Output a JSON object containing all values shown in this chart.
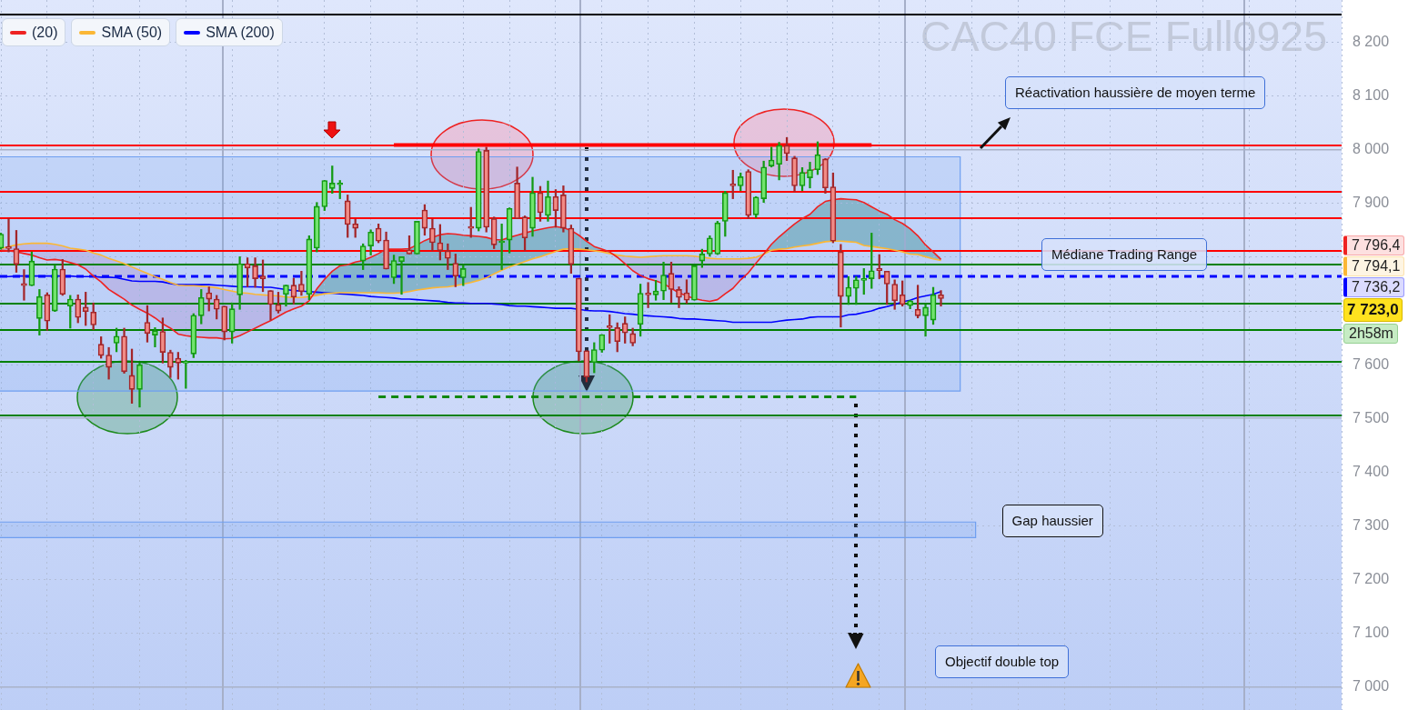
{
  "chart_data": {
    "type": "candlestick",
    "title": "CAC40 FCE Full0925",
    "categories": [
      null,
      null,
      null,
      null,
      null,
      null,
      null,
      null,
      null,
      null,
      null,
      null,
      null,
      null,
      null,
      null,
      null,
      null,
      null,
      null,
      null,
      null,
      null,
      null,
      null,
      null,
      null,
      null,
      null,
      null,
      null,
      null,
      null,
      null,
      null,
      null,
      null,
      null,
      null,
      null,
      null,
      null,
      null,
      null,
      null,
      null,
      null,
      null,
      null,
      null,
      null,
      null,
      null,
      null,
      null,
      null,
      null,
      null,
      null,
      null,
      null,
      null,
      null,
      null,
      null,
      null,
      null,
      null,
      null,
      null,
      null,
      null,
      null,
      null,
      null,
      null,
      null,
      null,
      null,
      null,
      null,
      null,
      null,
      null,
      null,
      null,
      null,
      null,
      null,
      null,
      null,
      null,
      null,
      null,
      null,
      null,
      null,
      null,
      null,
      null,
      null,
      null,
      null,
      null,
      null,
      null,
      null,
      null,
      null,
      null,
      null,
      null,
      null,
      null,
      null,
      null,
      null,
      null,
      null,
      null,
      null,
      null,
      null
    ],
    "ohlc": [
      [
        7817,
        7845,
        7815,
        7843
      ],
      [
        7820,
        7872,
        7810,
        7816
      ],
      [
        7816,
        7850,
        7772,
        7787
      ],
      [
        7751,
        7777,
        7720,
        7747
      ],
      [
        7747,
        7810,
        7747,
        7793
      ],
      [
        7686,
        7740,
        7655,
        7727
      ],
      [
        7730,
        7734,
        7664,
        7681
      ],
      [
        7700,
        7785,
        7699,
        7778
      ],
      [
        7778,
        7796,
        7729,
        7731
      ],
      [
        7709,
        7729,
        7668,
        7722
      ],
      [
        7722,
        7730,
        7678,
        7688
      ],
      [
        7707,
        7735,
        7673,
        7699
      ],
      [
        7698,
        7715,
        7665,
        7674
      ],
      [
        7638,
        7652,
        7612,
        7617
      ],
      [
        7618,
        7632,
        7573,
        7595
      ],
      [
        7640,
        7668,
        7624,
        7653
      ],
      [
        7653,
        7668,
        7584,
        7587
      ],
      [
        7580,
        7629,
        7528,
        7554
      ],
      [
        7554,
        7603,
        7521,
        7600
      ],
      [
        7679,
        7710,
        7642,
        7658
      ],
      [
        7655,
        7669,
        7633,
        7663
      ],
      [
        7662,
        7687,
        7603,
        7623
      ],
      [
        7623,
        7627,
        7576,
        7595
      ],
      [
        7612,
        7623,
        7573,
        7603
      ],
      [
        7603,
        7608,
        7556,
        7606
      ],
      [
        7620,
        7695,
        7613,
        7692
      ],
      [
        7691,
        7740,
        7676,
        7725
      ],
      [
        7734,
        7745,
        7700,
        7722
      ],
      [
        7722,
        7729,
        7685,
        7703
      ],
      [
        7709,
        7709,
        7646,
        7661
      ],
      [
        7661,
        7715,
        7640,
        7704
      ],
      [
        7730,
        7801,
        7703,
        7788
      ],
      [
        7788,
        7799,
        7745,
        7780
      ],
      [
        7784,
        7799,
        7744,
        7760
      ],
      [
        7765,
        7795,
        7736,
        7760
      ],
      [
        7738,
        7738,
        7683,
        7712
      ],
      [
        7712,
        7735,
        7696,
        7700
      ],
      [
        7731,
        7748,
        7709,
        7748
      ],
      [
        7748,
        7761,
        7713,
        7726
      ],
      [
        7750,
        7774,
        7729,
        7736
      ],
      [
        7731,
        7840,
        7721,
        7834
      ],
      [
        7817,
        7902,
        7810,
        7895
      ],
      [
        7894,
        7943,
        7887,
        7943
      ],
      [
        7928,
        7970,
        7919,
        7938
      ],
      [
        7935,
        7943,
        7909,
        7936
      ],
      [
        7905,
        7916,
        7837,
        7861
      ],
      [
        7862,
        7871,
        7837,
        7854
      ],
      [
        7793,
        7825,
        7777,
        7821
      ],
      [
        7821,
        7851,
        7804,
        7847
      ],
      [
        7854,
        7862,
        7827,
        7830
      ],
      [
        7832,
        7847,
        7778,
        7778
      ],
      [
        7762,
        7804,
        7751,
        7794
      ],
      [
        7792,
        7801,
        7731,
        7801
      ],
      [
        7814,
        7840,
        7806,
        7806
      ],
      [
        7806,
        7867,
        7806,
        7867
      ],
      [
        7888,
        7898,
        7841,
        7854
      ],
      [
        7854,
        7871,
        7812,
        7827
      ],
      [
        7827,
        7861,
        7795,
        7812
      ],
      [
        7812,
        7825,
        7777,
        7798
      ],
      [
        7789,
        7806,
        7745,
        7765
      ],
      [
        7762,
        7785,
        7747,
        7779
      ],
      [
        7857,
        7893,
        7837,
        7854
      ],
      [
        7854,
        8002,
        7849,
        7997
      ],
      [
        7999,
        8005,
        7847,
        7856
      ],
      [
        7872,
        7875,
        7816,
        7823
      ],
      [
        7827,
        7862,
        7777,
        7830
      ],
      [
        7832,
        7892,
        7808,
        7891
      ],
      [
        7938,
        7968,
        7872,
        7872
      ],
      [
        7875,
        7877,
        7812,
        7836
      ],
      [
        7854,
        7949,
        7839,
        7920
      ],
      [
        7920,
        7932,
        7867,
        7883
      ],
      [
        7878,
        7942,
        7867,
        7913
      ],
      [
        7913,
        7926,
        7856,
        7887
      ],
      [
        7916,
        7933,
        7847,
        7854
      ],
      [
        7854,
        7860,
        7770,
        7787
      ],
      [
        7761,
        7761,
        7607,
        7624
      ],
      [
        7626,
        7626,
        7568,
        7577
      ],
      [
        7604,
        7641,
        7585,
        7628
      ],
      [
        7627,
        7656,
        7623,
        7656
      ],
      [
        7672,
        7693,
        7640,
        7669
      ],
      [
        7669,
        7678,
        7624,
        7643
      ],
      [
        7677,
        7689,
        7640,
        7659
      ],
      [
        7658,
        7668,
        7635,
        7640
      ],
      [
        7675,
        7750,
        7653,
        7733
      ],
      [
        7733,
        7753,
        7706,
        7730
      ],
      [
        7730,
        7757,
        7720,
        7737
      ],
      [
        7737,
        7791,
        7721,
        7767
      ],
      [
        7770,
        7791,
        7716,
        7740
      ],
      [
        7740,
        7745,
        7706,
        7725
      ],
      [
        7734,
        7758,
        7714,
        7720
      ],
      [
        7720,
        7784,
        7720,
        7784
      ],
      [
        7793,
        7815,
        7781,
        7806
      ],
      [
        7806,
        7840,
        7802,
        7836
      ],
      [
        7806,
        7867,
        7805,
        7864
      ],
      [
        7867,
        7923,
        7839,
        7920
      ],
      [
        7936,
        7962,
        7909,
        7933
      ],
      [
        7933,
        7957,
        7924,
        7950
      ],
      [
        7960,
        7963,
        7872,
        7878
      ],
      [
        7879,
        7913,
        7874,
        7912
      ],
      [
        7909,
        7979,
        7902,
        7968
      ],
      [
        7970,
        8005,
        7968,
        7981
      ],
      [
        7973,
        8014,
        7944,
        8008
      ],
      [
        8008,
        8023,
        7980,
        7993
      ],
      [
        7985,
        7988,
        7922,
        7933
      ],
      [
        7933,
        7967,
        7924,
        7958
      ],
      [
        7948,
        7977,
        7929,
        7963
      ],
      [
        7963,
        8015,
        7954,
        7991
      ],
      [
        7983,
        7984,
        7919,
        7929
      ],
      [
        7931,
        7957,
        7827,
        7830
      ],
      [
        7810,
        7824,
        7670,
        7727
      ],
      [
        7727,
        7764,
        7712,
        7744
      ],
      [
        7742,
        7764,
        7712,
        7758
      ],
      [
        7757,
        7779,
        7731,
        7760
      ],
      [
        7760,
        7845,
        7742,
        7775
      ],
      [
        7779,
        7805,
        7760,
        7775
      ],
      [
        7774,
        7774,
        7712,
        7750
      ],
      [
        7750,
        7758,
        7703,
        7719
      ],
      [
        7730,
        7756,
        7709,
        7712
      ],
      [
        7710,
        7720,
        7704,
        7719
      ],
      [
        7703,
        7748,
        7687,
        7691
      ],
      [
        7691,
        7712,
        7653,
        7707
      ],
      [
        7683,
        7744,
        7675,
        7730
      ],
      [
        7730,
        7738,
        7709,
        7723
      ]
    ],
    "series": [
      {
        "name": "(20)",
        "type": "line",
        "color": "#ee2222",
        "values": [
          7813,
          7812,
          7810,
          7807,
          7804,
          7799,
          7795,
          7796,
          7794,
          7790,
          7786,
          7778,
          7765,
          7754,
          7740,
          7731,
          7722,
          7711,
          7703,
          7696,
          7687,
          7676,
          7668,
          7657,
          7654,
          7652,
          7651,
          7650,
          7650,
          7648,
          7649,
          7654,
          7661,
          7668,
          7675,
          7682,
          7690,
          7698,
          7704,
          7709,
          7719,
          7741,
          7759,
          7774,
          7784,
          7786,
          7791,
          7794,
          7800,
          7807,
          7815,
          7815,
          7815,
          7816,
          7823,
          7831,
          7837,
          7842,
          7844,
          7843,
          7841,
          7840,
          7839,
          7837,
          7833,
          7832,
          7837,
          7841,
          7845,
          7849,
          7852,
          7855,
          7857,
          7855,
          7850,
          7841,
          7830,
          7820,
          7815,
          7810,
          7800,
          7788,
          7775,
          7766,
          7760,
          7756,
          7751,
          7742,
          7734,
          7728,
          7723,
          7720,
          7718,
          7721,
          7732,
          7742,
          7758,
          7771,
          7789,
          7806,
          7824,
          7838,
          7850,
          7862,
          7872,
          7880,
          7894,
          7904,
          7907,
          7909,
          7908,
          7907,
          7902,
          7894,
          7886,
          7880,
          7870,
          7863,
          7853,
          7840,
          7823,
          7810,
          7796
        ]
      },
      {
        "name": "SMA (50)",
        "type": "line",
        "color": "#fbb735",
        "values": [
          7816,
          7820,
          7823,
          7825,
          7826,
          7826,
          7826,
          7824,
          7821,
          7817,
          7815,
          7813,
          7808,
          7804,
          7798,
          7793,
          7788,
          7782,
          7776,
          7770,
          7764,
          7759,
          7753,
          7748,
          7747,
          7747,
          7746,
          7745,
          7743,
          7740,
          7737,
          7734,
          7733,
          7731,
          7730,
          7729,
          7728,
          7726,
          7725,
          7725,
          7727,
          7729,
          7732,
          7733,
          7734,
          7734,
          7734,
          7734,
          7734,
          7734,
          7733,
          7733,
          7734,
          7736,
          7739,
          7741,
          7743,
          7744,
          7745,
          7747,
          7750,
          7753,
          7757,
          7762,
          7769,
          7776,
          7782,
          7787,
          7792,
          7797,
          7801,
          7806,
          7811,
          7815,
          7816,
          7815,
          7814,
          7812,
          7810,
          7807,
          7804,
          7802,
          7801,
          7800,
          7801,
          7802,
          7803,
          7803,
          7803,
          7803,
          7802,
          7800,
          7798,
          7797,
          7797,
          7797,
          7797,
          7798,
          7800,
          7806,
          7813,
          7815,
          7816,
          7819,
          7821,
          7823,
          7826,
          7829,
          7830,
          7830,
          7829,
          7828,
          7822,
          7820,
          7818,
          7816,
          7813,
          7810,
          7806,
          7805,
          7801,
          7797,
          7794
        ]
      },
      {
        "name": "SMA (200)",
        "type": "line",
        "color": "#0000ff",
        "values": [
          7764,
          7764,
          7765,
          7765,
          7765,
          7765,
          7765,
          7765,
          7765,
          7765,
          7764,
          7764,
          7764,
          7763,
          7763,
          7762,
          7759,
          7756,
          7755,
          7755,
          7755,
          7754,
          7751,
          7749,
          7749,
          7749,
          7749,
          7749,
          7748,
          7747,
          7746,
          7745,
          7745,
          7745,
          7744,
          7744,
          7742,
          7740,
          7738,
          7737,
          7736,
          7735,
          7734,
          7733,
          7732,
          7731,
          7730,
          7729,
          7727,
          7726,
          7725,
          7724,
          7722,
          7722,
          7721,
          7720,
          7719,
          7718,
          7716,
          7715,
          7715,
          7714,
          7714,
          7714,
          7713,
          7712,
          7710,
          7709,
          7709,
          7708,
          7707,
          7706,
          7705,
          7705,
          7705,
          7703,
          7701,
          7700,
          7700,
          7699,
          7697,
          7695,
          7694,
          7692,
          7691,
          7690,
          7689,
          7688,
          7686,
          7685,
          7685,
          7684,
          7683,
          7682,
          7681,
          7679,
          7679,
          7679,
          7679,
          7679,
          7679,
          7681,
          7683,
          7684,
          7685,
          7688,
          7689,
          7689,
          7689,
          7689,
          7693,
          7694,
          7697,
          7700,
          7705,
          7708,
          7712,
          7717,
          7720,
          7725,
          7728,
          7731,
          7736
        ]
      },
      {
        "type": "line",
        "color": "#ff0000",
        "values": [
          null,
          null,
          null,
          null,
          null,
          null,
          null,
          null,
          null,
          null,
          null,
          null,
          null,
          null,
          null,
          null,
          null,
          null,
          null,
          null,
          null,
          null,
          null,
          null,
          null,
          null,
          null,
          null,
          null,
          null,
          null,
          null,
          null,
          null,
          null,
          null,
          null,
          null,
          null,
          null,
          null,
          null,
          null,
          null,
          null,
          null,
          null,
          null,
          null,
          null,
          null,
          8009,
          8009,
          8009,
          8009,
          8009,
          8009,
          8009,
          8009,
          8009,
          8009,
          8009,
          8009,
          8009,
          8009,
          8009,
          8009,
          8009,
          8009,
          8009,
          8009,
          8009,
          8009,
          8009,
          8009,
          8009,
          8009,
          8009,
          8009,
          8009,
          8009,
          8009,
          8009,
          8009,
          8009,
          8009,
          8009,
          8009,
          8009,
          8009,
          8009,
          8009,
          8009,
          8009,
          8009,
          8009,
          8009,
          8009,
          8009,
          8009,
          8009,
          8009,
          8009,
          8009,
          8009,
          8009,
          8009,
          8009,
          8009,
          8009,
          8009,
          8009,
          8009,
          8009,
          null,
          null,
          null,
          null,
          null,
          null,
          null,
          null,
          null
        ]
      },
      {
        "type": "line",
        "color": "#118811",
        "line_style": "dashed",
        "values": [
          null,
          null,
          null,
          null,
          null,
          null,
          null,
          null,
          null,
          null,
          null,
          null,
          null,
          null,
          null,
          null,
          null,
          null,
          null,
          null,
          null,
          null,
          null,
          null,
          null,
          null,
          null,
          null,
          null,
          null,
          null,
          null,
          null,
          null,
          null,
          null,
          null,
          null,
          null,
          null,
          null,
          null,
          null,
          null,
          null,
          null,
          null,
          null,
          null,
          7540,
          7540,
          7540,
          7540,
          7540,
          7540,
          7540,
          7540,
          7540,
          7540,
          7540,
          7540,
          7540,
          7540,
          7540,
          7540,
          7540,
          7540,
          7540,
          7540,
          7540,
          7540,
          7540,
          7540,
          7540,
          7540,
          7540,
          7540,
          7540,
          7540,
          7540,
          7540,
          7540,
          7540,
          7540,
          7540,
          7540,
          7540,
          7540,
          7540,
          7540,
          7540,
          7540,
          7540,
          7540,
          7540,
          7540,
          7540,
          7540,
          7540,
          7540,
          7540,
          7540,
          7540,
          7540,
          7540,
          7540,
          7540,
          7540,
          7540,
          7540,
          7540,
          7540,
          null,
          null,
          null,
          null,
          null,
          null,
          null,
          null,
          null,
          null,
          null
        ]
      }
    ],
    "ylim": [
      6957,
      8279
    ],
    "yticks": [
      {
        "value": 7000,
        "label": "7 000"
      },
      {
        "value": 7100,
        "label": "7 100"
      },
      {
        "value": 7200,
        "label": "7 200"
      },
      {
        "value": 7300,
        "label": "7 300"
      },
      {
        "value": 7400,
        "label": "7 400"
      },
      {
        "value": 7500,
        "label": "7 500"
      },
      {
        "value": 7600,
        "label": "7 600"
      },
      {
        "value": 7700,
        "label": null
      },
      {
        "value": 7800,
        "label": null
      },
      {
        "value": 7900,
        "label": "7 900"
      },
      {
        "value": 8000,
        "label": "8 000"
      },
      {
        "value": 8100,
        "label": "8 100"
      },
      {
        "value": 8200,
        "label": "8 200"
      }
    ],
    "tick_labels": "y",
    "grid": true,
    "legend": "top left",
    "ref_lines": [
      {
        "axis": "y",
        "value": 8252,
        "color": "#000000"
      },
      {
        "axis": "y",
        "value": 8008,
        "color": "#ff0000"
      },
      {
        "axis": "y",
        "value": 7921,
        "color": "#ff0000"
      },
      {
        "axis": "y",
        "value": 7873,
        "color": "#ff0000"
      },
      {
        "axis": "y",
        "value": 7811,
        "color": "#ff0000"
      },
      {
        "axis": "y",
        "value": 7786,
        "color": "#008000"
      },
      {
        "axis": "y",
        "value": 7765,
        "color": "#0000ff",
        "line_style": "dashed",
        "label": "Médiane Trading Range"
      },
      {
        "axis": "y",
        "value": 7713,
        "color": "#008000"
      },
      {
        "axis": "y",
        "value": 7664,
        "color": "#008000"
      },
      {
        "axis": "y",
        "value": 7606,
        "color": "#008000"
      },
      {
        "axis": "y",
        "value": 7505,
        "color": "#008000"
      }
    ],
    "bands": [
      {
        "axis": "y",
        "from": 7551,
        "to": 7987,
        "color": "#6f9ff0"
      },
      {
        "axis": "y",
        "from": 7278,
        "to": 7307,
        "label": "Gap haussier",
        "color": "#6f9ff0"
      }
    ],
    "annotations": [
      "7 796,4",
      "7 794,1",
      "7 736,2",
      "7 723,0",
      "2h58m",
      "Réactivation haussière de moyen terme",
      "Objectif double top"
    ]
  }
}
